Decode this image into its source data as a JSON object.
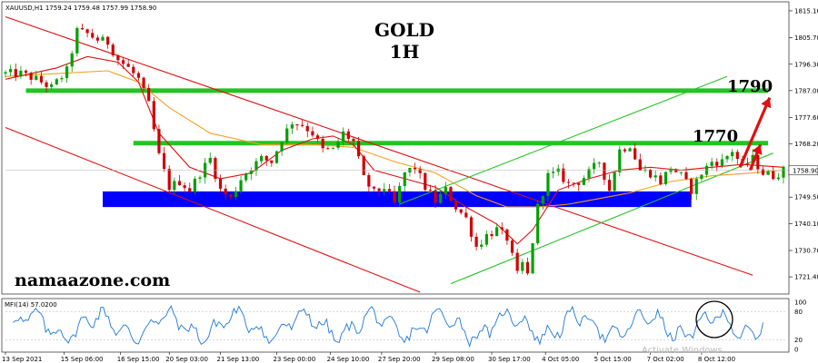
{
  "header": {
    "symbol_line": "XAUUSD,H1  1759.24 1759.48 1757.99 1758.90"
  },
  "title_line1": "GOLD",
  "title_line2": "1H",
  "level_labels": {
    "upper": "1790",
    "middle": "1770"
  },
  "watermark_brand": "namaazone.com",
  "price_axis_ticks": [
    "1815.10",
    "1805.70",
    "1796.30",
    "1787.00",
    "1777.60",
    "1768.20",
    "1758.90",
    "1749.50",
    "1740.10",
    "1730.70",
    "1721.40"
  ],
  "current_price_label": "1758.90",
  "time_axis_ticks": [
    "13 Sep 2021",
    "15 Sep 06:00",
    "16 Sep 15:00",
    "20 Sep 03:00",
    "21 Sep 13:00",
    "23 Sep 00:00",
    "24 Sep 10:00",
    "27 Sep 20:00",
    "29 Sep 08:00",
    "30 Sep 17:00",
    "4 Oct 05:00",
    "5 Oct 15:00",
    "7 Oct 02:00",
    "8 Oct 12:00"
  ],
  "indicator": {
    "label": "MFI(14) 57.0200",
    "axis_ticks": [
      "100",
      "80",
      "20",
      "0"
    ]
  },
  "os_watermark": "Activate Windows",
  "colors": {
    "bull_candle": "#00a000",
    "bear_candle": "#d00000",
    "ma_fast": "#e01010",
    "ma_slow": "#f5a020",
    "channel_down": "#e01010",
    "channel_up": "#22c422",
    "level_line": "#22c422",
    "support_zone": "#0000ff",
    "mfi_line": "#1e78d8",
    "arrow": "#e01010"
  },
  "chart_data": {
    "type": "candlestick",
    "symbol": "XAUUSD",
    "timeframe": "H1",
    "ohlc_last": {
      "open": 1759.24,
      "high": 1759.48,
      "low": 1757.99,
      "close": 1758.9
    },
    "y_range": [
      1716.0,
      1817.0
    ],
    "close_path": [
      [
        0,
        1793
      ],
      [
        3,
        1793
      ],
      [
        6,
        1791
      ],
      [
        9,
        1788
      ],
      [
        12,
        1794
      ],
      [
        14,
        1808
      ],
      [
        16,
        1807
      ],
      [
        18,
        1805
      ],
      [
        20,
        1804
      ],
      [
        22,
        1798
      ],
      [
        24,
        1795
      ],
      [
        26,
        1791
      ],
      [
        28,
        1782
      ],
      [
        30,
        1764
      ],
      [
        32,
        1753
      ],
      [
        34,
        1755
      ],
      [
        36,
        1752
      ],
      [
        38,
        1758
      ],
      [
        40,
        1763
      ],
      [
        42,
        1752
      ],
      [
        44,
        1749
      ],
      [
        46,
        1756
      ],
      [
        48,
        1760
      ],
      [
        50,
        1763
      ],
      [
        52,
        1762
      ],
      [
        54,
        1770
      ],
      [
        56,
        1776
      ],
      [
        58,
        1775
      ],
      [
        60,
        1772
      ],
      [
        62,
        1766
      ],
      [
        64,
        1766
      ],
      [
        66,
        1772
      ],
      [
        68,
        1769
      ],
      [
        70,
        1756
      ],
      [
        72,
        1751
      ],
      [
        74,
        1753
      ],
      [
        76,
        1747
      ],
      [
        78,
        1758
      ],
      [
        80,
        1760
      ],
      [
        82,
        1753
      ],
      [
        84,
        1748
      ],
      [
        86,
        1752
      ],
      [
        88,
        1746
      ],
      [
        90,
        1742
      ],
      [
        92,
        1732
      ],
      [
        94,
        1736
      ],
      [
        96,
        1738
      ],
      [
        98,
        1735
      ],
      [
        100,
        1722
      ],
      [
        101,
        1726
      ],
      [
        102,
        1722
      ],
      [
        104,
        1746
      ],
      [
        106,
        1757
      ],
      [
        108,
        1758
      ],
      [
        110,
        1754
      ],
      [
        112,
        1755
      ],
      [
        114,
        1758
      ],
      [
        116,
        1762
      ],
      [
        118,
        1752
      ],
      [
        120,
        1766
      ],
      [
        122,
        1768
      ],
      [
        124,
        1759
      ],
      [
        126,
        1758
      ],
      [
        128,
        1755
      ],
      [
        130,
        1760
      ],
      [
        132,
        1757
      ],
      [
        134,
        1752
      ],
      [
        136,
        1758
      ],
      [
        138,
        1762
      ],
      [
        140,
        1762
      ],
      [
        142,
        1766
      ],
      [
        144,
        1760
      ],
      [
        146,
        1763
      ],
      [
        148,
        1758
      ],
      [
        150,
        1757
      ],
      [
        152,
        1758.9
      ]
    ],
    "ma_fast_path": [
      [
        0,
        1791
      ],
      [
        10,
        1795
      ],
      [
        16,
        1799
      ],
      [
        22,
        1797
      ],
      [
        26,
        1790
      ],
      [
        30,
        1772
      ],
      [
        36,
        1760
      ],
      [
        42,
        1756
      ],
      [
        48,
        1758
      ],
      [
        54,
        1766
      ],
      [
        60,
        1770
      ],
      [
        64,
        1771
      ],
      [
        68,
        1768
      ],
      [
        72,
        1759
      ],
      [
        78,
        1756
      ],
      [
        84,
        1753
      ],
      [
        90,
        1746
      ],
      [
        96,
        1740
      ],
      [
        100,
        1733
      ],
      [
        103,
        1738
      ],
      [
        108,
        1752
      ],
      [
        114,
        1756
      ],
      [
        120,
        1759
      ],
      [
        126,
        1760
      ],
      [
        132,
        1759
      ],
      [
        138,
        1760
      ],
      [
        144,
        1761
      ],
      [
        152,
        1760
      ]
    ],
    "ma_slow_path": [
      [
        0,
        1792
      ],
      [
        10,
        1793
      ],
      [
        20,
        1794
      ],
      [
        26,
        1790
      ],
      [
        32,
        1781
      ],
      [
        40,
        1772
      ],
      [
        50,
        1768
      ],
      [
        60,
        1768
      ],
      [
        68,
        1767
      ],
      [
        76,
        1762
      ],
      [
        84,
        1758
      ],
      [
        92,
        1750
      ],
      [
        98,
        1746
      ],
      [
        104,
        1746
      ],
      [
        110,
        1747
      ],
      [
        116,
        1749
      ],
      [
        122,
        1751
      ],
      [
        130,
        1755
      ],
      [
        138,
        1757
      ],
      [
        146,
        1758
      ],
      [
        152,
        1759
      ]
    ],
    "support_zone": [
      1746.0,
      1751.5
    ],
    "resistance_levels": [
      1770,
      1790
    ],
    "mfi": {
      "period": 14,
      "last": 57.02,
      "range": [
        0,
        100
      ],
      "levels": [
        20,
        80
      ]
    }
  }
}
